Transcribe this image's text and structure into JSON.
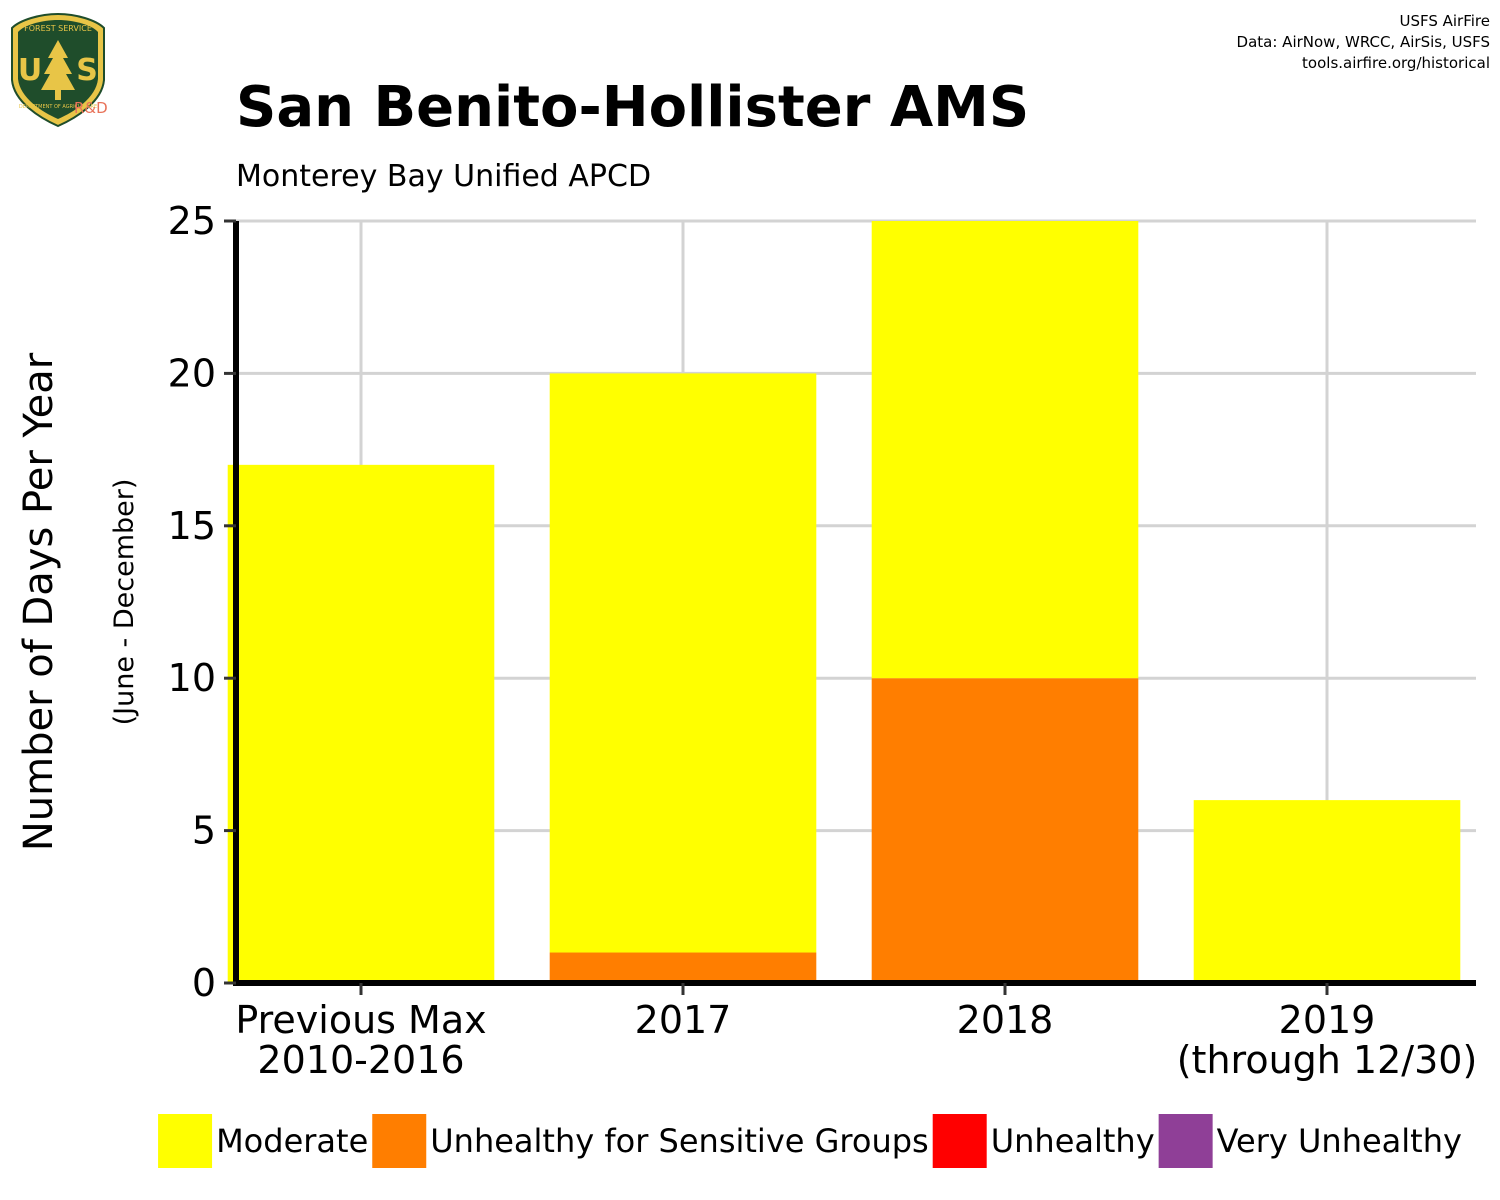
{
  "logo": {
    "top_text": "FOREST SERVICE",
    "letters": "USS",
    "bottom_text": "DEPARTMENT OF AGRICULTURE",
    "rd_label": "R&D",
    "colors": {
      "shield": "#1f4d2b",
      "gold": "#e8c547",
      "rd": "#e8735a"
    }
  },
  "credits": {
    "line1": "USFS AirFire",
    "line2": "Data: AirNow, WRCC, AirSis, USFS",
    "line3": "tools.airfire.org/historical"
  },
  "chart_data": {
    "type": "bar",
    "stacked": true,
    "title": "San Benito-Hollister AMS",
    "subtitle": "Monterey Bay Unified APCD",
    "ylabel": "Number of Days Per Year",
    "ylabel_sub": "(June - December)",
    "xlabel": "",
    "ylim": [
      0,
      25
    ],
    "yticks": [
      0,
      5,
      10,
      15,
      20,
      25
    ],
    "grid": true,
    "categories": [
      [
        "Previous Max",
        "2010-2016"
      ],
      [
        "2017"
      ],
      [
        "2018"
      ],
      [
        "2019",
        "(through 12/30)"
      ]
    ],
    "series": [
      {
        "name": "Moderate",
        "color": "#ffff00",
        "values": [
          17,
          19,
          15,
          6
        ]
      },
      {
        "name": "Unhealthy for Sensitive Groups",
        "color": "#ff7e00",
        "values": [
          0,
          1,
          10,
          0
        ]
      },
      {
        "name": "Unhealthy",
        "color": "#ff0000",
        "values": [
          0,
          0,
          0,
          0
        ]
      },
      {
        "name": "Very Unhealthy",
        "color": "#8f3f97",
        "values": [
          0,
          0,
          0,
          0
        ]
      }
    ],
    "legend_position": "bottom"
  }
}
